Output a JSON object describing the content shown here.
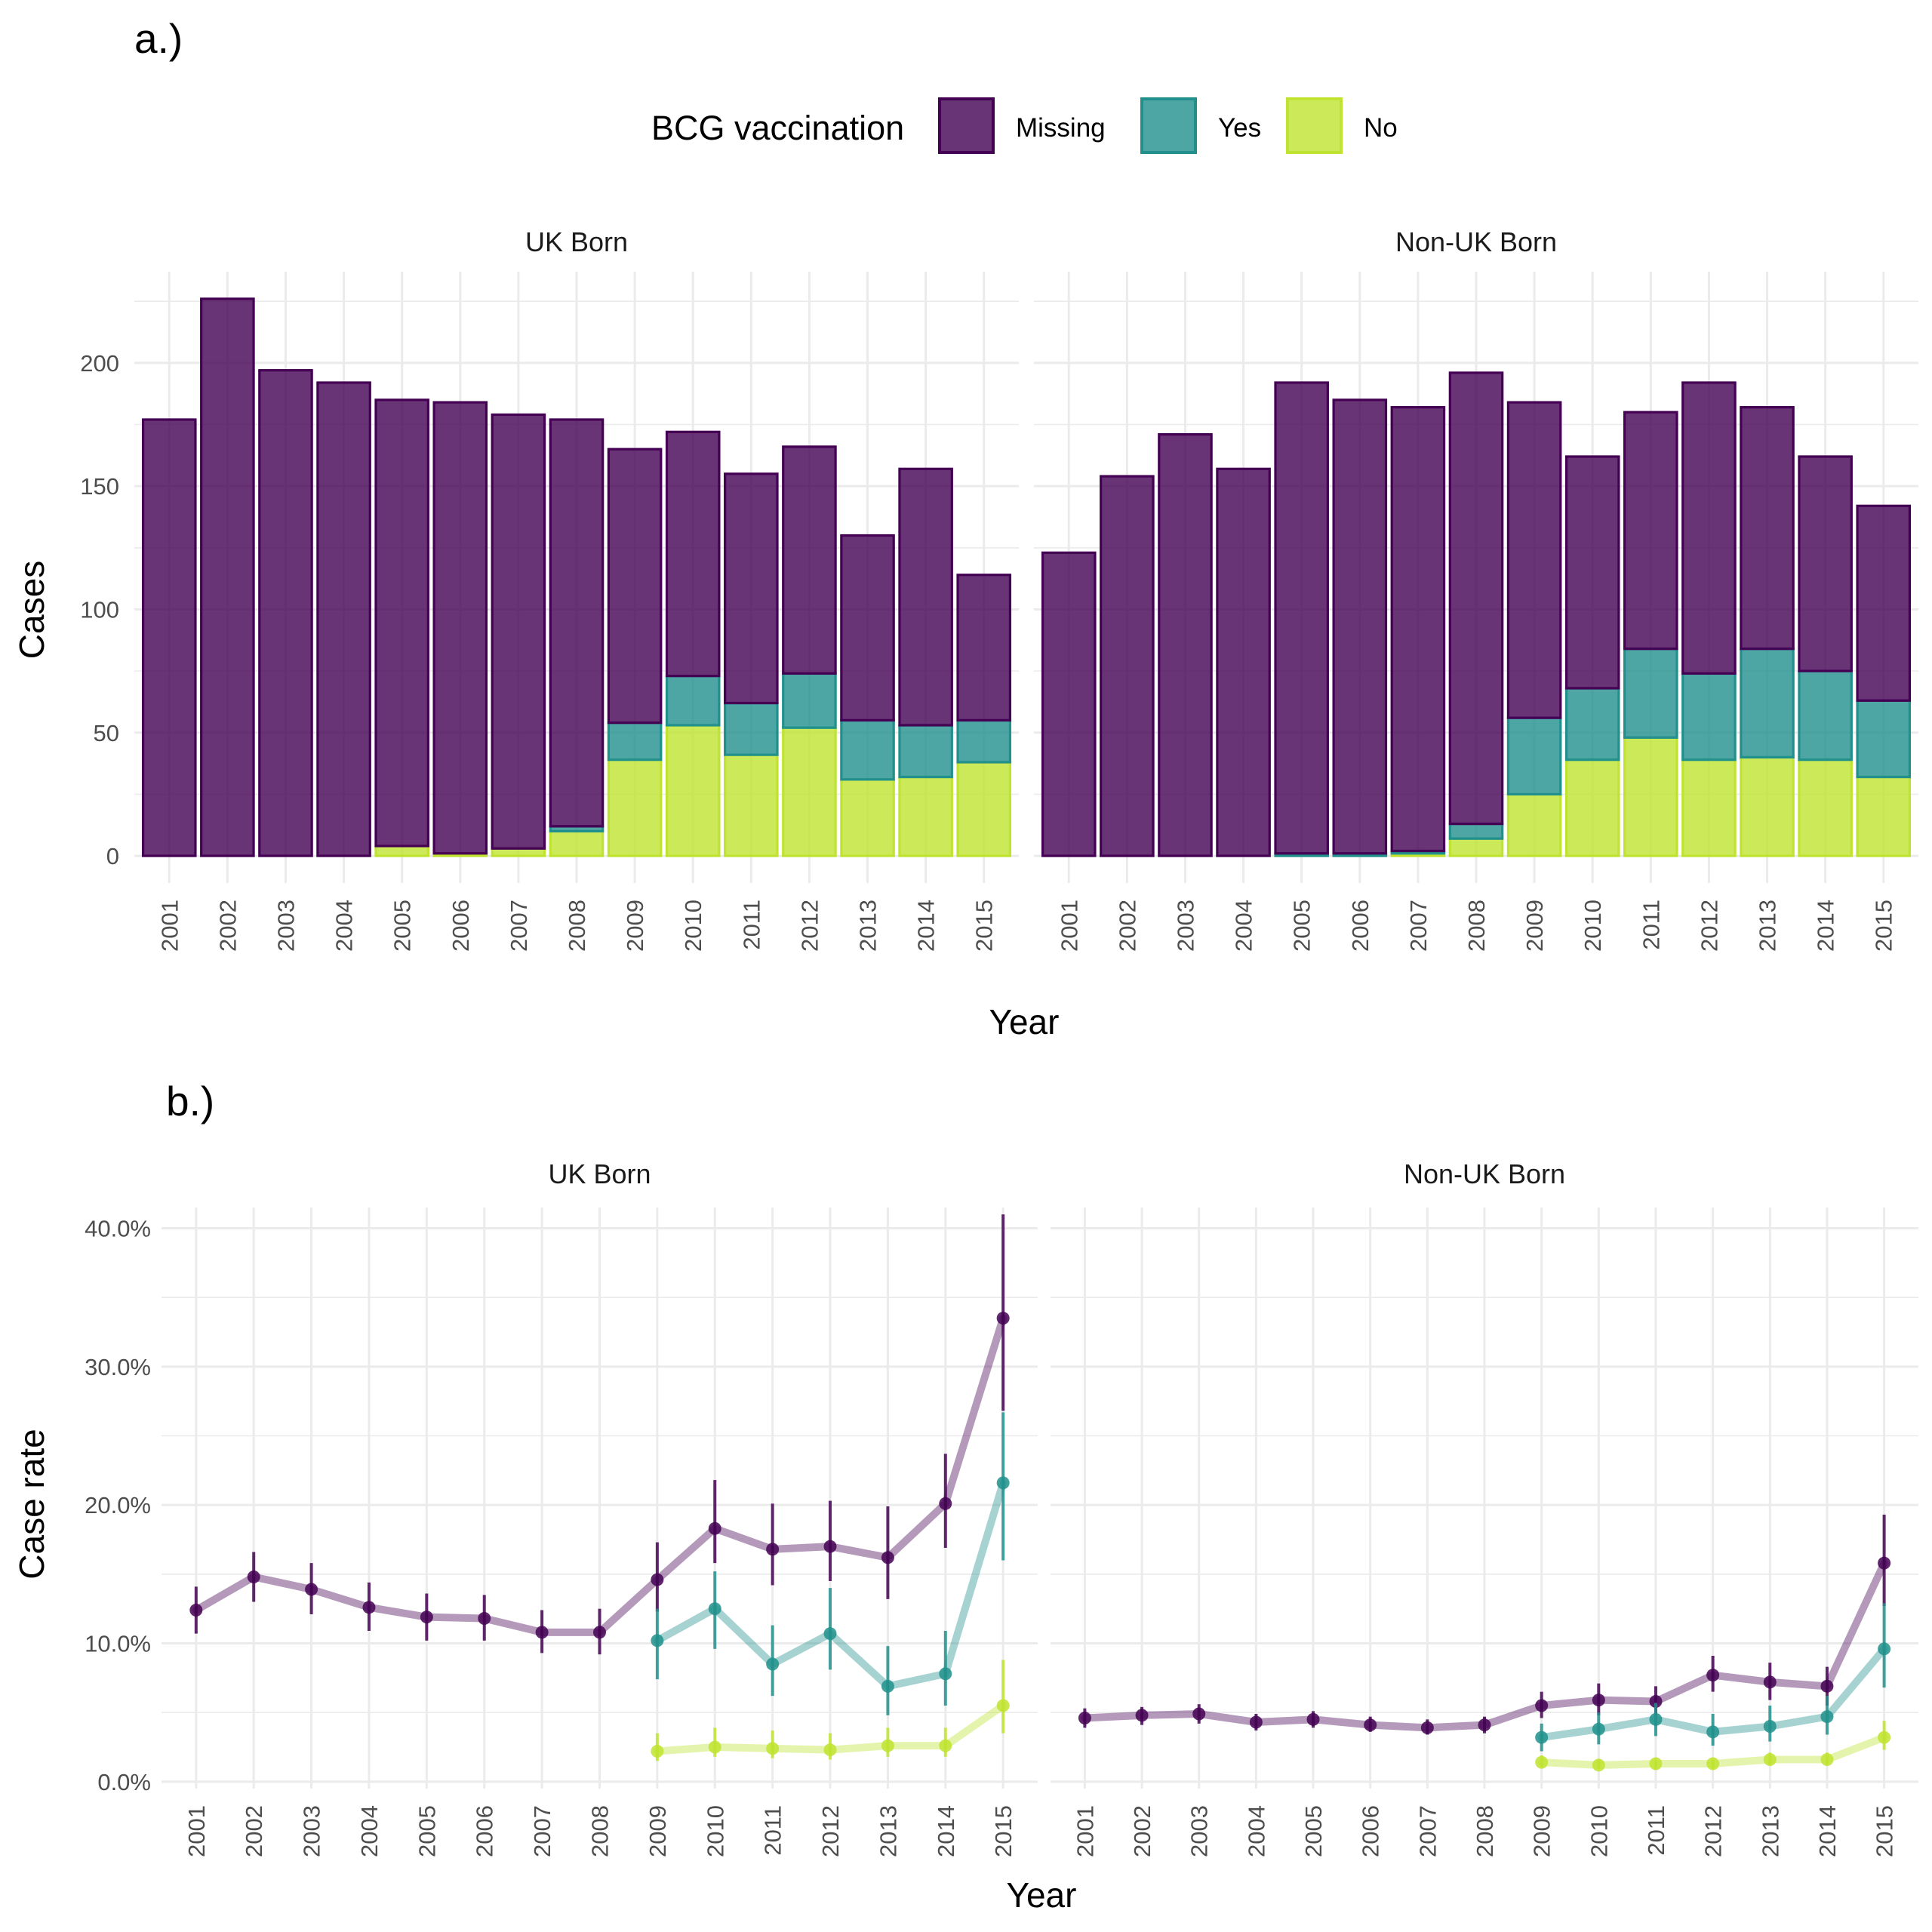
{
  "panel_a": {
    "tag": "a.)",
    "legend": {
      "title": "BCG vaccination",
      "items": [
        {
          "label": "Missing",
          "fill": "#440154",
          "alpha": 0.8,
          "stroke": "#440154"
        },
        {
          "label": "Yes",
          "fill": "#21908C",
          "alpha": 0.8,
          "stroke": "#21908C"
        },
        {
          "label": "No",
          "fill": "#BFE330",
          "alpha": 0.8,
          "stroke": "#BFE330"
        }
      ]
    },
    "ylabel": "Cases",
    "xlabel": "Year"
  },
  "panel_b": {
    "tag": "b.)",
    "ylabel": "Case rate",
    "xlabel": "Year"
  },
  "chart_data": [
    {
      "type": "bar",
      "stacked": true,
      "panel": "a",
      "xlabel": "Year",
      "ylabel": "Cases",
      "ylim": [
        0,
        226
      ],
      "yticks": [
        0,
        50,
        100,
        150,
        200
      ],
      "ytick_labels": [
        "0",
        "50",
        "100",
        "150",
        "200"
      ],
      "categories": [
        "2001",
        "2002",
        "2003",
        "2004",
        "2005",
        "2006",
        "2007",
        "2008",
        "2009",
        "2010",
        "2011",
        "2012",
        "2013",
        "2014",
        "2015"
      ],
      "facets": [
        {
          "title": "UK Born",
          "series": [
            {
              "name": "No",
              "values": [
                0,
                0,
                0,
                0,
                4,
                1,
                3,
                10,
                39,
                53,
                41,
                52,
                31,
                32,
                38
              ]
            },
            {
              "name": "Yes",
              "values": [
                0,
                0,
                0,
                0,
                0,
                0,
                0,
                2,
                15,
                20,
                21,
                22,
                24,
                21,
                17
              ]
            },
            {
              "name": "Missing",
              "values": [
                177,
                226,
                197,
                192,
                181,
                183,
                176,
                165,
                111,
                99,
                93,
                92,
                75,
                104,
                59
              ]
            }
          ]
        },
        {
          "title": "Non-UK Born",
          "series": [
            {
              "name": "No",
              "values": [
                0,
                0,
                0,
                0,
                0,
                0,
                1,
                7,
                25,
                39,
                48,
                39,
                40,
                39,
                32
              ]
            },
            {
              "name": "Yes",
              "values": [
                0,
                0,
                0,
                0,
                1,
                1,
                1,
                6,
                31,
                29,
                36,
                35,
                44,
                36,
                31
              ]
            },
            {
              "name": "Missing",
              "values": [
                123,
                154,
                171,
                157,
                191,
                184,
                180,
                183,
                128,
                94,
                96,
                118,
                98,
                87,
                79
              ]
            }
          ]
        }
      ]
    },
    {
      "type": "line",
      "panel": "b",
      "xlabel": "Year",
      "ylabel": "Case rate",
      "ylim": [
        0,
        40
      ],
      "yticks": [
        0,
        10,
        20,
        30,
        40
      ],
      "ytick_labels": [
        "0.0%",
        "10.0%",
        "20.0%",
        "30.0%",
        "40.0%"
      ],
      "x": [
        "2001",
        "2002",
        "2003",
        "2004",
        "2005",
        "2006",
        "2007",
        "2008",
        "2009",
        "2010",
        "2011",
        "2012",
        "2013",
        "2014",
        "2015"
      ],
      "facets": [
        {
          "title": "UK Born",
          "series": [
            {
              "name": "Missing",
              "values": [
                12.4,
                14.8,
                13.9,
                12.6,
                11.9,
                11.8,
                10.8,
                10.8,
                14.6,
                18.3,
                16.8,
                17.0,
                16.2,
                20.1,
                33.5
              ],
              "lower": [
                10.7,
                13.0,
                12.1,
                10.9,
                10.2,
                10.2,
                9.3,
                9.2,
                12.3,
                15.8,
                14.2,
                14.5,
                13.2,
                16.9,
                26.8
              ],
              "upper": [
                14.1,
                16.6,
                15.8,
                14.4,
                13.6,
                13.5,
                12.4,
                12.5,
                17.3,
                21.8,
                20.1,
                20.3,
                19.9,
                23.7,
                41.0
              ]
            },
            {
              "name": "Yes",
              "values": [
                null,
                null,
                null,
                null,
                null,
                null,
                null,
                null,
                10.2,
                12.5,
                8.5,
                10.7,
                6.9,
                7.8,
                21.6
              ],
              "lower": [
                null,
                null,
                null,
                null,
                null,
                null,
                null,
                null,
                7.4,
                9.6,
                6.2,
                8.1,
                4.8,
                5.5,
                16.0
              ],
              "upper": [
                null,
                null,
                null,
                null,
                null,
                null,
                null,
                null,
                12.5,
                15.2,
                11.3,
                14.0,
                9.8,
                10.9,
                26.7
              ]
            },
            {
              "name": "No",
              "values": [
                null,
                null,
                null,
                null,
                null,
                null,
                null,
                null,
                2.2,
                2.5,
                2.4,
                2.3,
                2.6,
                2.6,
                5.5
              ],
              "lower": [
                null,
                null,
                null,
                null,
                null,
                null,
                null,
                null,
                1.5,
                1.8,
                1.7,
                1.6,
                1.8,
                1.8,
                3.5
              ],
              "upper": [
                null,
                null,
                null,
                null,
                null,
                null,
                null,
                null,
                3.5,
                3.9,
                3.7,
                3.5,
                3.9,
                3.9,
                8.8
              ]
            }
          ]
        },
        {
          "title": "Non-UK Born",
          "series": [
            {
              "name": "Missing",
              "values": [
                4.6,
                4.8,
                4.9,
                4.3,
                4.5,
                4.1,
                3.9,
                4.1,
                5.5,
                5.9,
                5.8,
                7.7,
                7.2,
                6.9,
                15.8
              ],
              "lower": [
                3.9,
                4.1,
                4.2,
                3.7,
                3.9,
                3.6,
                3.4,
                3.5,
                4.6,
                4.8,
                4.8,
                6.5,
                5.9,
                5.5,
                12.7
              ],
              "upper": [
                5.3,
                5.4,
                5.6,
                4.9,
                5.1,
                4.7,
                4.5,
                4.7,
                6.5,
                7.1,
                6.9,
                9.1,
                8.6,
                8.3,
                19.3
              ]
            },
            {
              "name": "Yes",
              "values": [
                null,
                null,
                null,
                null,
                null,
                null,
                null,
                null,
                3.2,
                3.8,
                4.5,
                3.6,
                4.0,
                4.7,
                9.6
              ],
              "lower": [
                null,
                null,
                null,
                null,
                null,
                null,
                null,
                null,
                2.2,
                2.7,
                3.3,
                2.6,
                2.9,
                3.4,
                6.8
              ],
              "upper": [
                null,
                null,
                null,
                null,
                null,
                null,
                null,
                null,
                4.2,
                5.0,
                5.7,
                4.9,
                5.5,
                6.2,
                12.9
              ]
            },
            {
              "name": "No",
              "values": [
                null,
                null,
                null,
                null,
                null,
                null,
                null,
                null,
                1.4,
                1.2,
                1.3,
                1.3,
                1.6,
                1.6,
                3.2
              ],
              "lower": [
                null,
                null,
                null,
                null,
                null,
                null,
                null,
                null,
                1.0,
                0.9,
                0.9,
                0.9,
                1.2,
                1.2,
                2.3
              ],
              "upper": [
                null,
                null,
                null,
                null,
                null,
                null,
                null,
                null,
                1.9,
                1.6,
                1.7,
                1.7,
                2.1,
                2.1,
                4.4
              ]
            }
          ]
        }
      ]
    }
  ]
}
